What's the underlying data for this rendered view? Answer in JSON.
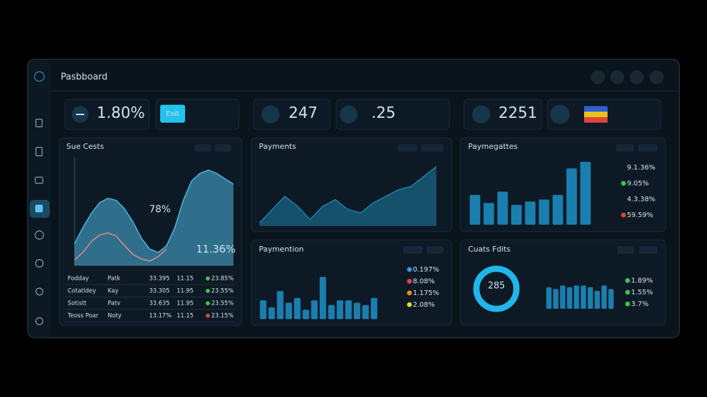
{
  "header": {
    "title": "Pasbboard"
  },
  "kpis": [
    {
      "value": "1.80%",
      "button": "Exit"
    },
    {
      "value": "247"
    },
    {
      "value": ".25"
    },
    {
      "value": "2251"
    }
  ],
  "panels": [
    {
      "title": "Sue Cests",
      "type": "line",
      "ylim": [
        0,
        100
      ],
      "annotation": "78%",
      "annotation_color": "#e0443a",
      "corner_label": "11.36%",
      "series": [
        {
          "color": "#4fb6e0",
          "values": [
            20,
            35,
            48,
            58,
            62,
            60,
            52,
            40,
            25,
            15,
            12,
            18,
            35,
            60,
            78,
            85,
            88,
            85,
            80,
            75
          ]
        },
        {
          "color": "#e58a8a",
          "values": [
            5,
            12,
            22,
            28,
            30,
            27,
            18,
            10,
            6,
            4,
            8,
            15,
            null,
            null,
            null,
            null,
            null,
            null,
            null,
            null
          ]
        }
      ],
      "table": [
        {
          "cells": [
            "Fodday",
            "Patk",
            "33.395",
            "11.15",
            "23.85%"
          ],
          "dot": "#3ec34a"
        },
        {
          "cells": [
            "Cotatldey",
            "Kay",
            "33.305",
            "11.95",
            "23.55%"
          ],
          "dot": "#3ec34a"
        },
        {
          "cells": [
            "Sotistt",
            "Patv",
            "33.635",
            "11.95",
            "23.55%"
          ],
          "dot": "#3ec34a"
        },
        {
          "cells": [
            "Teoss Poar",
            "Noty",
            "13.17%",
            "11.15",
            "23.15%"
          ],
          "dot": "#e0443a"
        }
      ]
    },
    {
      "title": "Payments",
      "type": "area",
      "ylim": [
        0,
        100
      ],
      "color": "#1f7fa8",
      "values": [
        5,
        25,
        45,
        30,
        10,
        30,
        40,
        25,
        20,
        35,
        45,
        55,
        60,
        75,
        90
      ]
    },
    {
      "title": "Paymegattes",
      "type": "bar",
      "ylim": [
        0,
        100
      ],
      "color": "#1a7fae",
      "values": [
        45,
        33,
        50,
        30,
        35,
        38,
        45,
        85,
        95
      ],
      "legend": [
        {
          "label": "9.1.36%",
          "color": null
        },
        {
          "label": "9.05%",
          "color": "#3ec34a"
        },
        {
          "label": "4.3.38%",
          "color": null
        },
        {
          "label": "59.59%",
          "color": "#e0443a"
        }
      ]
    },
    {
      "title": "Paymention",
      "type": "bar",
      "ylim": [
        0,
        100
      ],
      "color": "#1a7fae",
      "values": [
        40,
        25,
        60,
        35,
        45,
        20,
        40,
        90,
        30,
        40,
        40,
        35,
        30,
        45
      ],
      "legend": [
        {
          "label": "0.197%",
          "color": "#2f9be0"
        },
        {
          "label": "8.08%",
          "color": "#e0443a"
        },
        {
          "label": "1.175%",
          "color": "#f08a24"
        },
        {
          "label": "2.08%",
          "color": "#d9d93a"
        }
      ]
    },
    {
      "title": "Cuats Fdits",
      "type": "bar",
      "ylim": [
        0,
        100
      ],
      "color": "#1a7fae",
      "donut_label": "285",
      "values": [
        60,
        55,
        65,
        60,
        65,
        65,
        60,
        50,
        65,
        55
      ],
      "legend": [
        {
          "label": "1.89%",
          "color": "#3ec34a"
        },
        {
          "label": "1.55%",
          "color": "#3ec34a"
        },
        {
          "label": "3.7%",
          "color": "#3ec34a"
        }
      ]
    }
  ]
}
